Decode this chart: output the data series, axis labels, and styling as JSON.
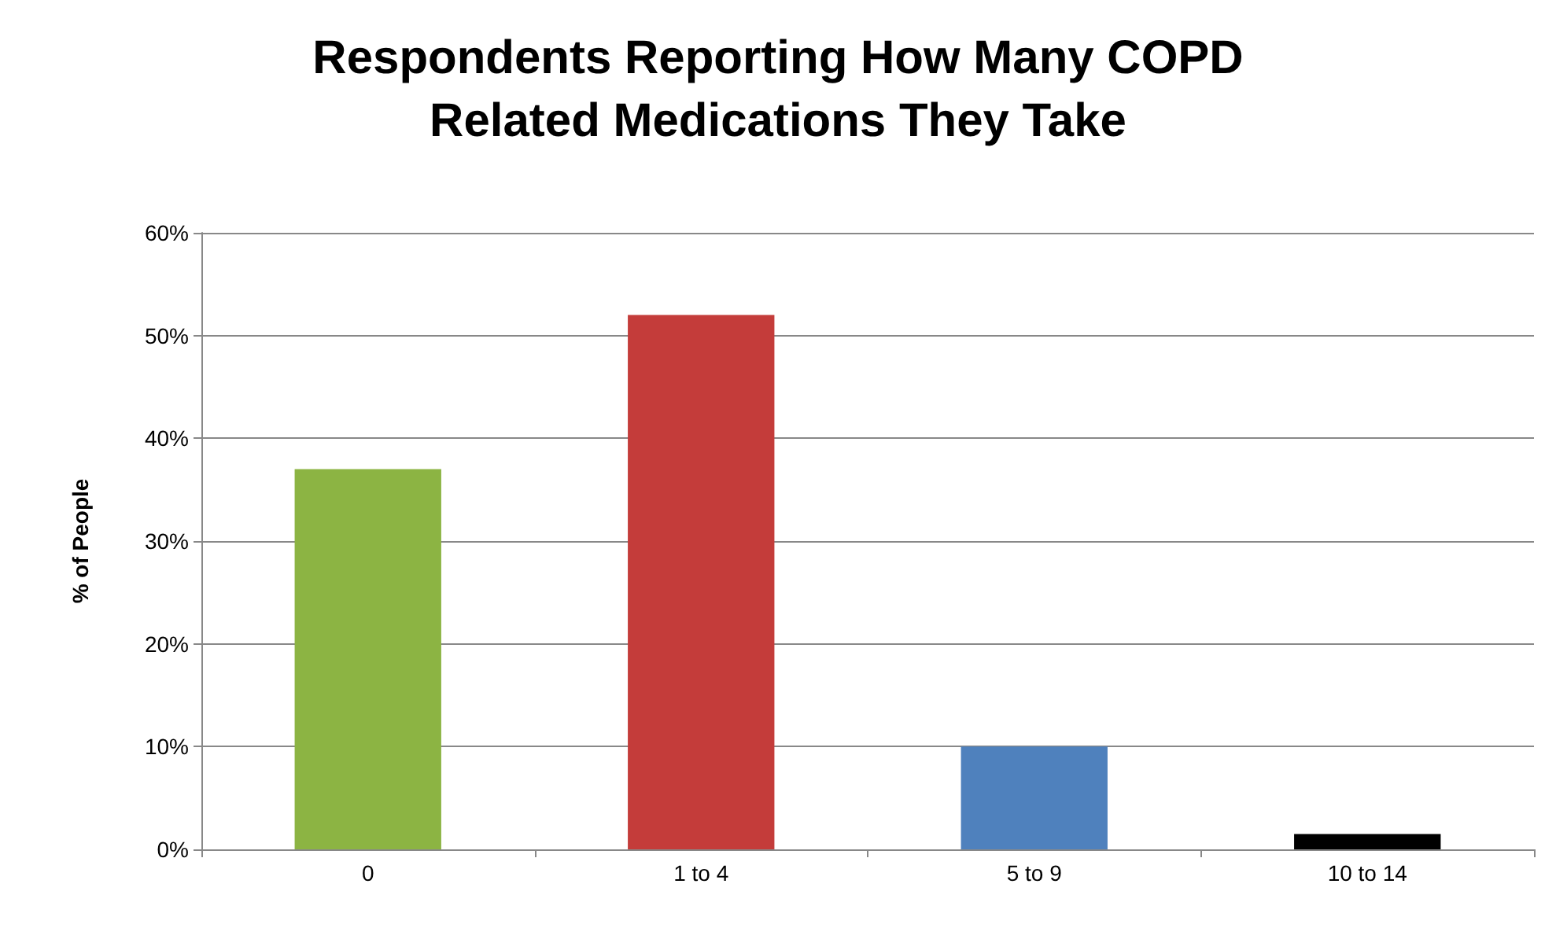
{
  "chart_data": {
    "type": "bar",
    "title": "Respondents Reporting How Many COPD\nRelated Medications They Take",
    "ylabel": "% of People",
    "categories": [
      "0",
      "1 to 4",
      "5 to 9",
      "10 to 14"
    ],
    "values": [
      37,
      52,
      10,
      1.5
    ],
    "colors": [
      "#8cb443",
      "#c43c3a",
      "#4f81bd",
      "#000000"
    ],
    "ylim": [
      0,
      60
    ],
    "yticks": [
      {
        "value": 0,
        "label": "0%"
      },
      {
        "value": 10,
        "label": "10%"
      },
      {
        "value": 20,
        "label": "20%"
      },
      {
        "value": 30,
        "label": "30%"
      },
      {
        "value": 40,
        "label": "40%"
      },
      {
        "value": 50,
        "label": "50%"
      },
      {
        "value": 60,
        "label": "60%"
      }
    ],
    "grid": "y"
  }
}
